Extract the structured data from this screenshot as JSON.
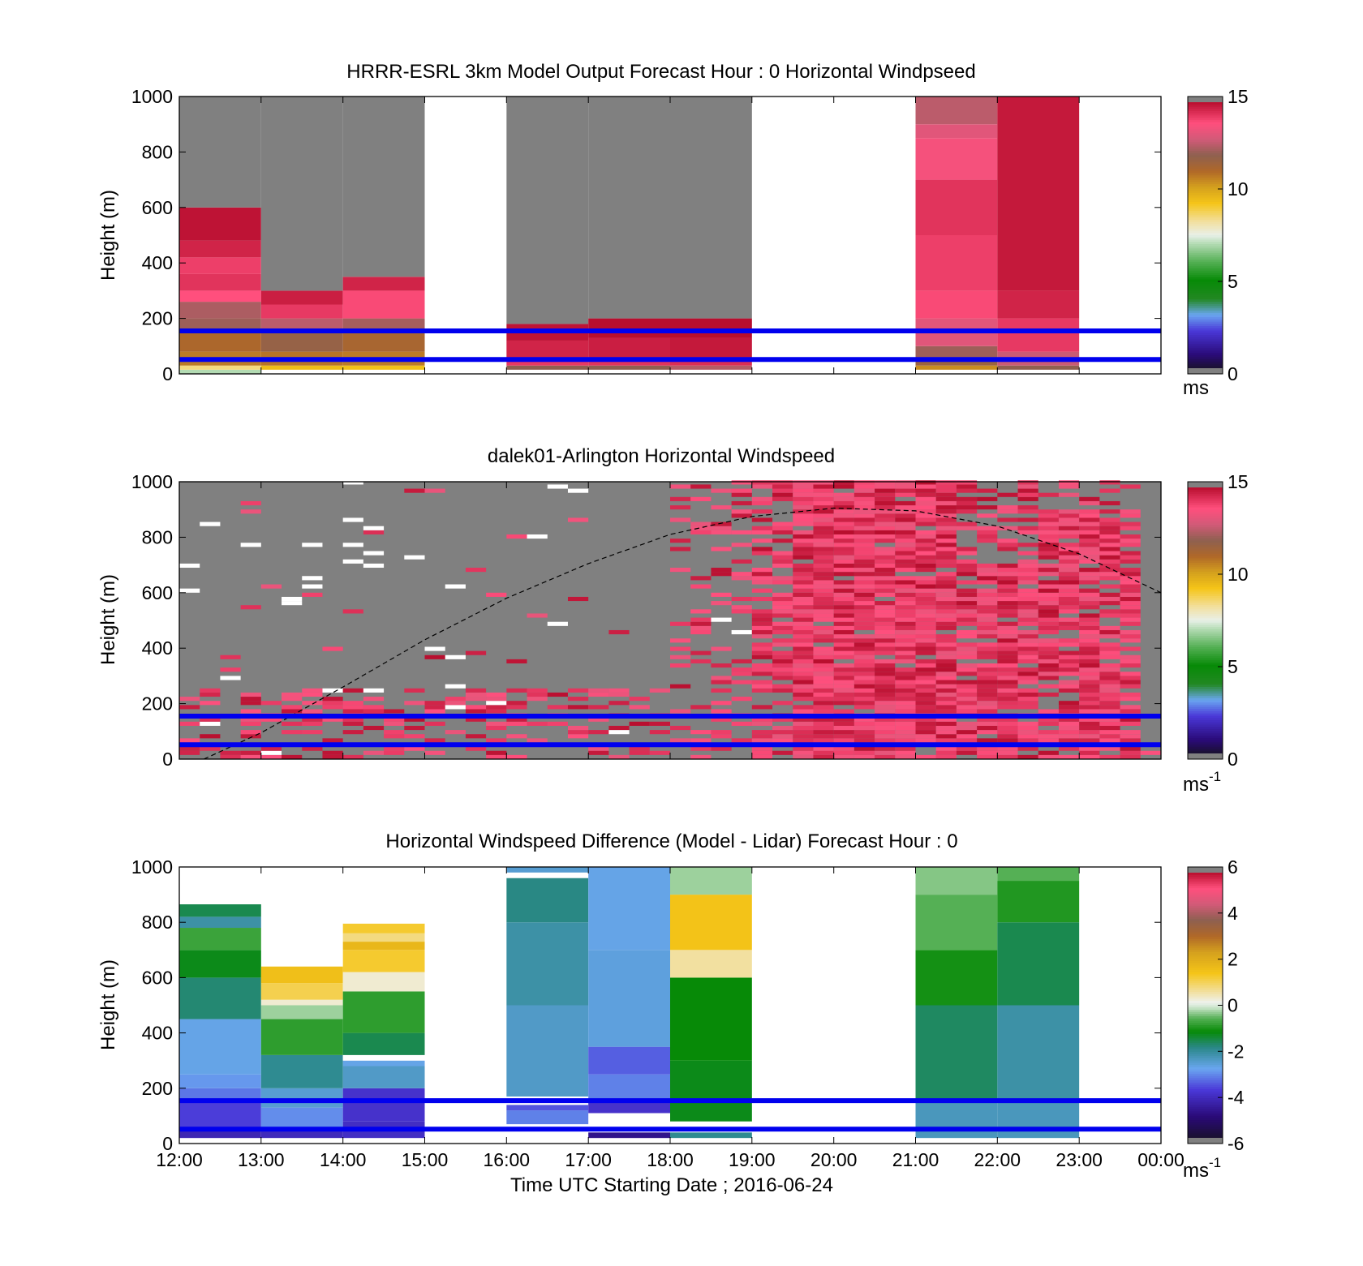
{
  "figure": {
    "xlabel": "Time UTC  Starting Date ; 2016-06-24",
    "time_ticks": [
      "12:00",
      "13:00",
      "14:00",
      "15:00",
      "16:00",
      "17:00",
      "18:00",
      "19:00",
      "20:00",
      "21:00",
      "22:00",
      "23:00",
      "00:00"
    ]
  },
  "chart_data": [
    {
      "type": "heatmap",
      "title": "HRRR-ESRL 3km Model Output   Forecast Hour : 0 Horizontal Windpseed",
      "ylabel": "Height (m)",
      "xlim": [
        "12:00",
        "00:00"
      ],
      "ylim": [
        0,
        1000
      ],
      "yticks": [
        "0",
        "200",
        "400",
        "600",
        "800",
        "1000"
      ],
      "colorbar": {
        "ticks": [
          "0",
          "5",
          "10",
          "15"
        ],
        "range": [
          0,
          15
        ],
        "unit": "ms",
        "unit_sup": ""
      },
      "colormap": "wind-speed",
      "no_data_color": "#808080",
      "reference_lines_m": [
        155,
        52
      ],
      "reference_line_color": "#0000ee",
      "columns": [
        {
          "start": "12:00",
          "end": "13:00",
          "levels": [
            [
              0,
              15,
              7
            ],
            [
              15,
              30,
              8.5
            ],
            [
              30,
              80,
              10.8
            ],
            [
              80,
              150,
              11.2
            ],
            [
              150,
              200,
              12.2
            ],
            [
              200,
              260,
              12.4
            ],
            [
              260,
              300,
              13.8
            ],
            [
              300,
              360,
              14.3
            ],
            [
              360,
              420,
              14.1
            ],
            [
              420,
              480,
              14.6
            ],
            [
              480,
              600,
              14.9
            ],
            [
              600,
              1000,
              null
            ]
          ]
        },
        {
          "start": "13:00",
          "end": "14:00",
          "levels": [
            [
              15,
              30,
              9.5
            ],
            [
              30,
              80,
              10.9
            ],
            [
              80,
              150,
              11.8
            ],
            [
              150,
              200,
              12.6
            ],
            [
              200,
              250,
              14.2
            ],
            [
              250,
              300,
              14.7
            ],
            [
              300,
              1000,
              null
            ]
          ]
        },
        {
          "start": "14:00",
          "end": "15:00",
          "levels": [
            [
              15,
              30,
              9.4
            ],
            [
              30,
              80,
              10.8
            ],
            [
              80,
              150,
              11.3
            ],
            [
              150,
              200,
              12.3
            ],
            [
              200,
              300,
              13.9
            ],
            [
              300,
              350,
              14.6
            ],
            [
              350,
              1000,
              null
            ]
          ]
        },
        {
          "start": "16:00",
          "end": "17:00",
          "levels": [
            [
              15,
              30,
              12
            ],
            [
              30,
              60,
              14.2
            ],
            [
              60,
              120,
              14.6
            ],
            [
              120,
              180,
              14.9
            ],
            [
              180,
              1000,
              null
            ]
          ]
        },
        {
          "start": "17:00",
          "end": "18:00",
          "levels": [
            [
              15,
              30,
              12
            ],
            [
              30,
              60,
              14.3
            ],
            [
              60,
              130,
              14.7
            ],
            [
              130,
              200,
              15
            ],
            [
              200,
              1000,
              null
            ]
          ]
        },
        {
          "start": "18:00",
          "end": "19:00",
          "levels": [
            [
              15,
              30,
              12.5
            ],
            [
              30,
              60,
              14.4
            ],
            [
              60,
              130,
              14.8
            ],
            [
              130,
              200,
              15
            ],
            [
              200,
              1000,
              null
            ]
          ]
        },
        {
          "start": "21:00",
          "end": "22:00",
          "levels": [
            [
              15,
              30,
              10.5
            ],
            [
              30,
              60,
              11.6
            ],
            [
              60,
              100,
              12.2
            ],
            [
              100,
              200,
              13.2
            ],
            [
              200,
              300,
              13.9
            ],
            [
              300,
              500,
              14.1
            ],
            [
              500,
              700,
              14.3
            ],
            [
              700,
              850,
              13.6
            ],
            [
              850,
              900,
              13.2
            ],
            [
              900,
              1000,
              12.6
            ]
          ]
        },
        {
          "start": "22:00",
          "end": "23:00",
          "levels": [
            [
              15,
              30,
              12
            ],
            [
              30,
              80,
              12.8
            ],
            [
              80,
              200,
              14.2
            ],
            [
              200,
              300,
              14.6
            ],
            [
              300,
              1000,
              14.8
            ]
          ]
        }
      ]
    },
    {
      "type": "heatmap",
      "title": "dalek01-Arlington  Horizontal Windspeed",
      "ylabel": "Height (m)",
      "xlim": [
        "12:00",
        "00:00"
      ],
      "ylim": [
        0,
        1000
      ],
      "yticks": [
        "0",
        "200",
        "400",
        "600",
        "800",
        "1000"
      ],
      "colorbar": {
        "ticks": [
          "0",
          "5",
          "10",
          "15"
        ],
        "range": [
          0,
          15
        ],
        "unit": "ms",
        "unit_sup": "-1"
      },
      "colormap": "wind-speed",
      "no_data_color": "#808080",
      "reference_lines_m": [
        155,
        52
      ],
      "reference_line_color": "#0000ee",
      "overlay_curve": {
        "style": "dashed",
        "points": [
          [
            12.3,
            0
          ],
          [
            13,
            95
          ],
          [
            14,
            260
          ],
          [
            15,
            430
          ],
          [
            16,
            580
          ],
          [
            17,
            705
          ],
          [
            18,
            810
          ],
          [
            19,
            875
          ],
          [
            20,
            905
          ],
          [
            21,
            895
          ],
          [
            22,
            840
          ],
          [
            23,
            740
          ],
          [
            24,
            600
          ]
        ]
      },
      "description": "Lidar profiles every 15 min; strong winds (13-15 m/s) mostly above 19:00 UTC, missing data (grey) elsewhere."
    },
    {
      "type": "heatmap",
      "title": "Horizontal Windspeed Difference (Model - Lidar) Forecast Hour : 0",
      "ylabel": "Height (m)",
      "xlim": [
        "12:00",
        "00:00"
      ],
      "ylim": [
        0,
        1000
      ],
      "yticks": [
        "0",
        "200",
        "400",
        "600",
        "800",
        "1000"
      ],
      "colorbar": {
        "ticks": [
          "-6",
          "-4",
          "-2",
          "0",
          "2",
          "4",
          "6"
        ],
        "range": [
          -6,
          6
        ],
        "unit": "ms",
        "unit_sup": "-1"
      },
      "colormap": "difference",
      "reference_lines_m": [
        155,
        52
      ],
      "reference_line_color": "#0000ee",
      "columns": [
        {
          "start": "12:00",
          "end": "13:00",
          "levels": [
            [
              20,
              60,
              -4.3
            ],
            [
              60,
              150,
              -3.8
            ],
            [
              150,
              200,
              -3.3
            ],
            [
              200,
              250,
              -3.0
            ],
            [
              250,
              450,
              -2.8
            ],
            [
              450,
              600,
              -1.8
            ],
            [
              600,
              700,
              -1.3
            ],
            [
              700,
              780,
              -0.8
            ],
            [
              780,
              820,
              -2.2
            ],
            [
              820,
              865,
              -1.6
            ]
          ]
        },
        {
          "start": "13:00",
          "end": "14:00",
          "levels": [
            [
              20,
              60,
              -4.2
            ],
            [
              60,
              130,
              -3.1
            ],
            [
              130,
              200,
              -2.6
            ],
            [
              200,
              320,
              -2.0
            ],
            [
              320,
              450,
              -0.9
            ],
            [
              450,
              500,
              -0.3
            ],
            [
              500,
              520,
              0.3
            ],
            [
              520,
              580,
              1.1
            ],
            [
              580,
              640,
              1.6
            ]
          ]
        },
        {
          "start": "14:00",
          "end": "15:00",
          "levels": [
            [
              20,
              80,
              -4.1
            ],
            [
              80,
              200,
              -4.0
            ],
            [
              200,
              280,
              -2.5
            ],
            [
              280,
              300,
              -2.8
            ],
            [
              300,
              320,
              null
            ],
            [
              320,
              400,
              -1.6
            ],
            [
              400,
              550,
              -0.9
            ],
            [
              550,
              620,
              0.3
            ],
            [
              620,
              700,
              1.3
            ],
            [
              700,
              730,
              1.8
            ],
            [
              730,
              760,
              0.8
            ],
            [
              760,
              795,
              1.3
            ]
          ]
        },
        {
          "start": "16:00",
          "end": "17:00",
          "levels": [
            [
              70,
              120,
              -3.2
            ],
            [
              120,
              140,
              -3.6
            ],
            [
              140,
              170,
              null
            ],
            [
              170,
              500,
              -2.5
            ],
            [
              500,
              800,
              -2.2
            ],
            [
              800,
              960,
              -1.9
            ],
            [
              960,
              980,
              null
            ],
            [
              980,
              1000,
              -2.6
            ]
          ]
        },
        {
          "start": "17:00",
          "end": "18:00",
          "levels": [
            [
              20,
              40,
              -4.8
            ],
            [
              110,
              150,
              -4.0
            ],
            [
              150,
              250,
              -3.2
            ],
            [
              250,
              350,
              -3.5
            ],
            [
              350,
              700,
              -2.7
            ],
            [
              700,
              1000,
              -2.8
            ]
          ]
        },
        {
          "start": "18:00",
          "end": "19:00",
          "levels": [
            [
              20,
              40,
              -2
            ],
            [
              80,
              300,
              -1.3
            ],
            [
              300,
              600,
              -1.2
            ],
            [
              600,
              700,
              0.6
            ],
            [
              700,
              900,
              1.5
            ],
            [
              900,
              1000,
              -0.3
            ]
          ]
        },
        {
          "start": "21:00",
          "end": "22:00",
          "levels": [
            [
              20,
              150,
              -2.4
            ],
            [
              150,
              500,
              -1.7
            ],
            [
              500,
              700,
              -1.1
            ],
            [
              700,
              900,
              -0.6
            ],
            [
              900,
              1000,
              -0.4
            ]
          ]
        },
        {
          "start": "22:00",
          "end": "23:00",
          "levels": [
            [
              20,
              150,
              -2.4
            ],
            [
              150,
              500,
              -2.2
            ],
            [
              500,
              800,
              -1.6
            ],
            [
              800,
              950,
              -1.0
            ],
            [
              950,
              1000,
              -0.6
            ]
          ]
        }
      ]
    }
  ]
}
